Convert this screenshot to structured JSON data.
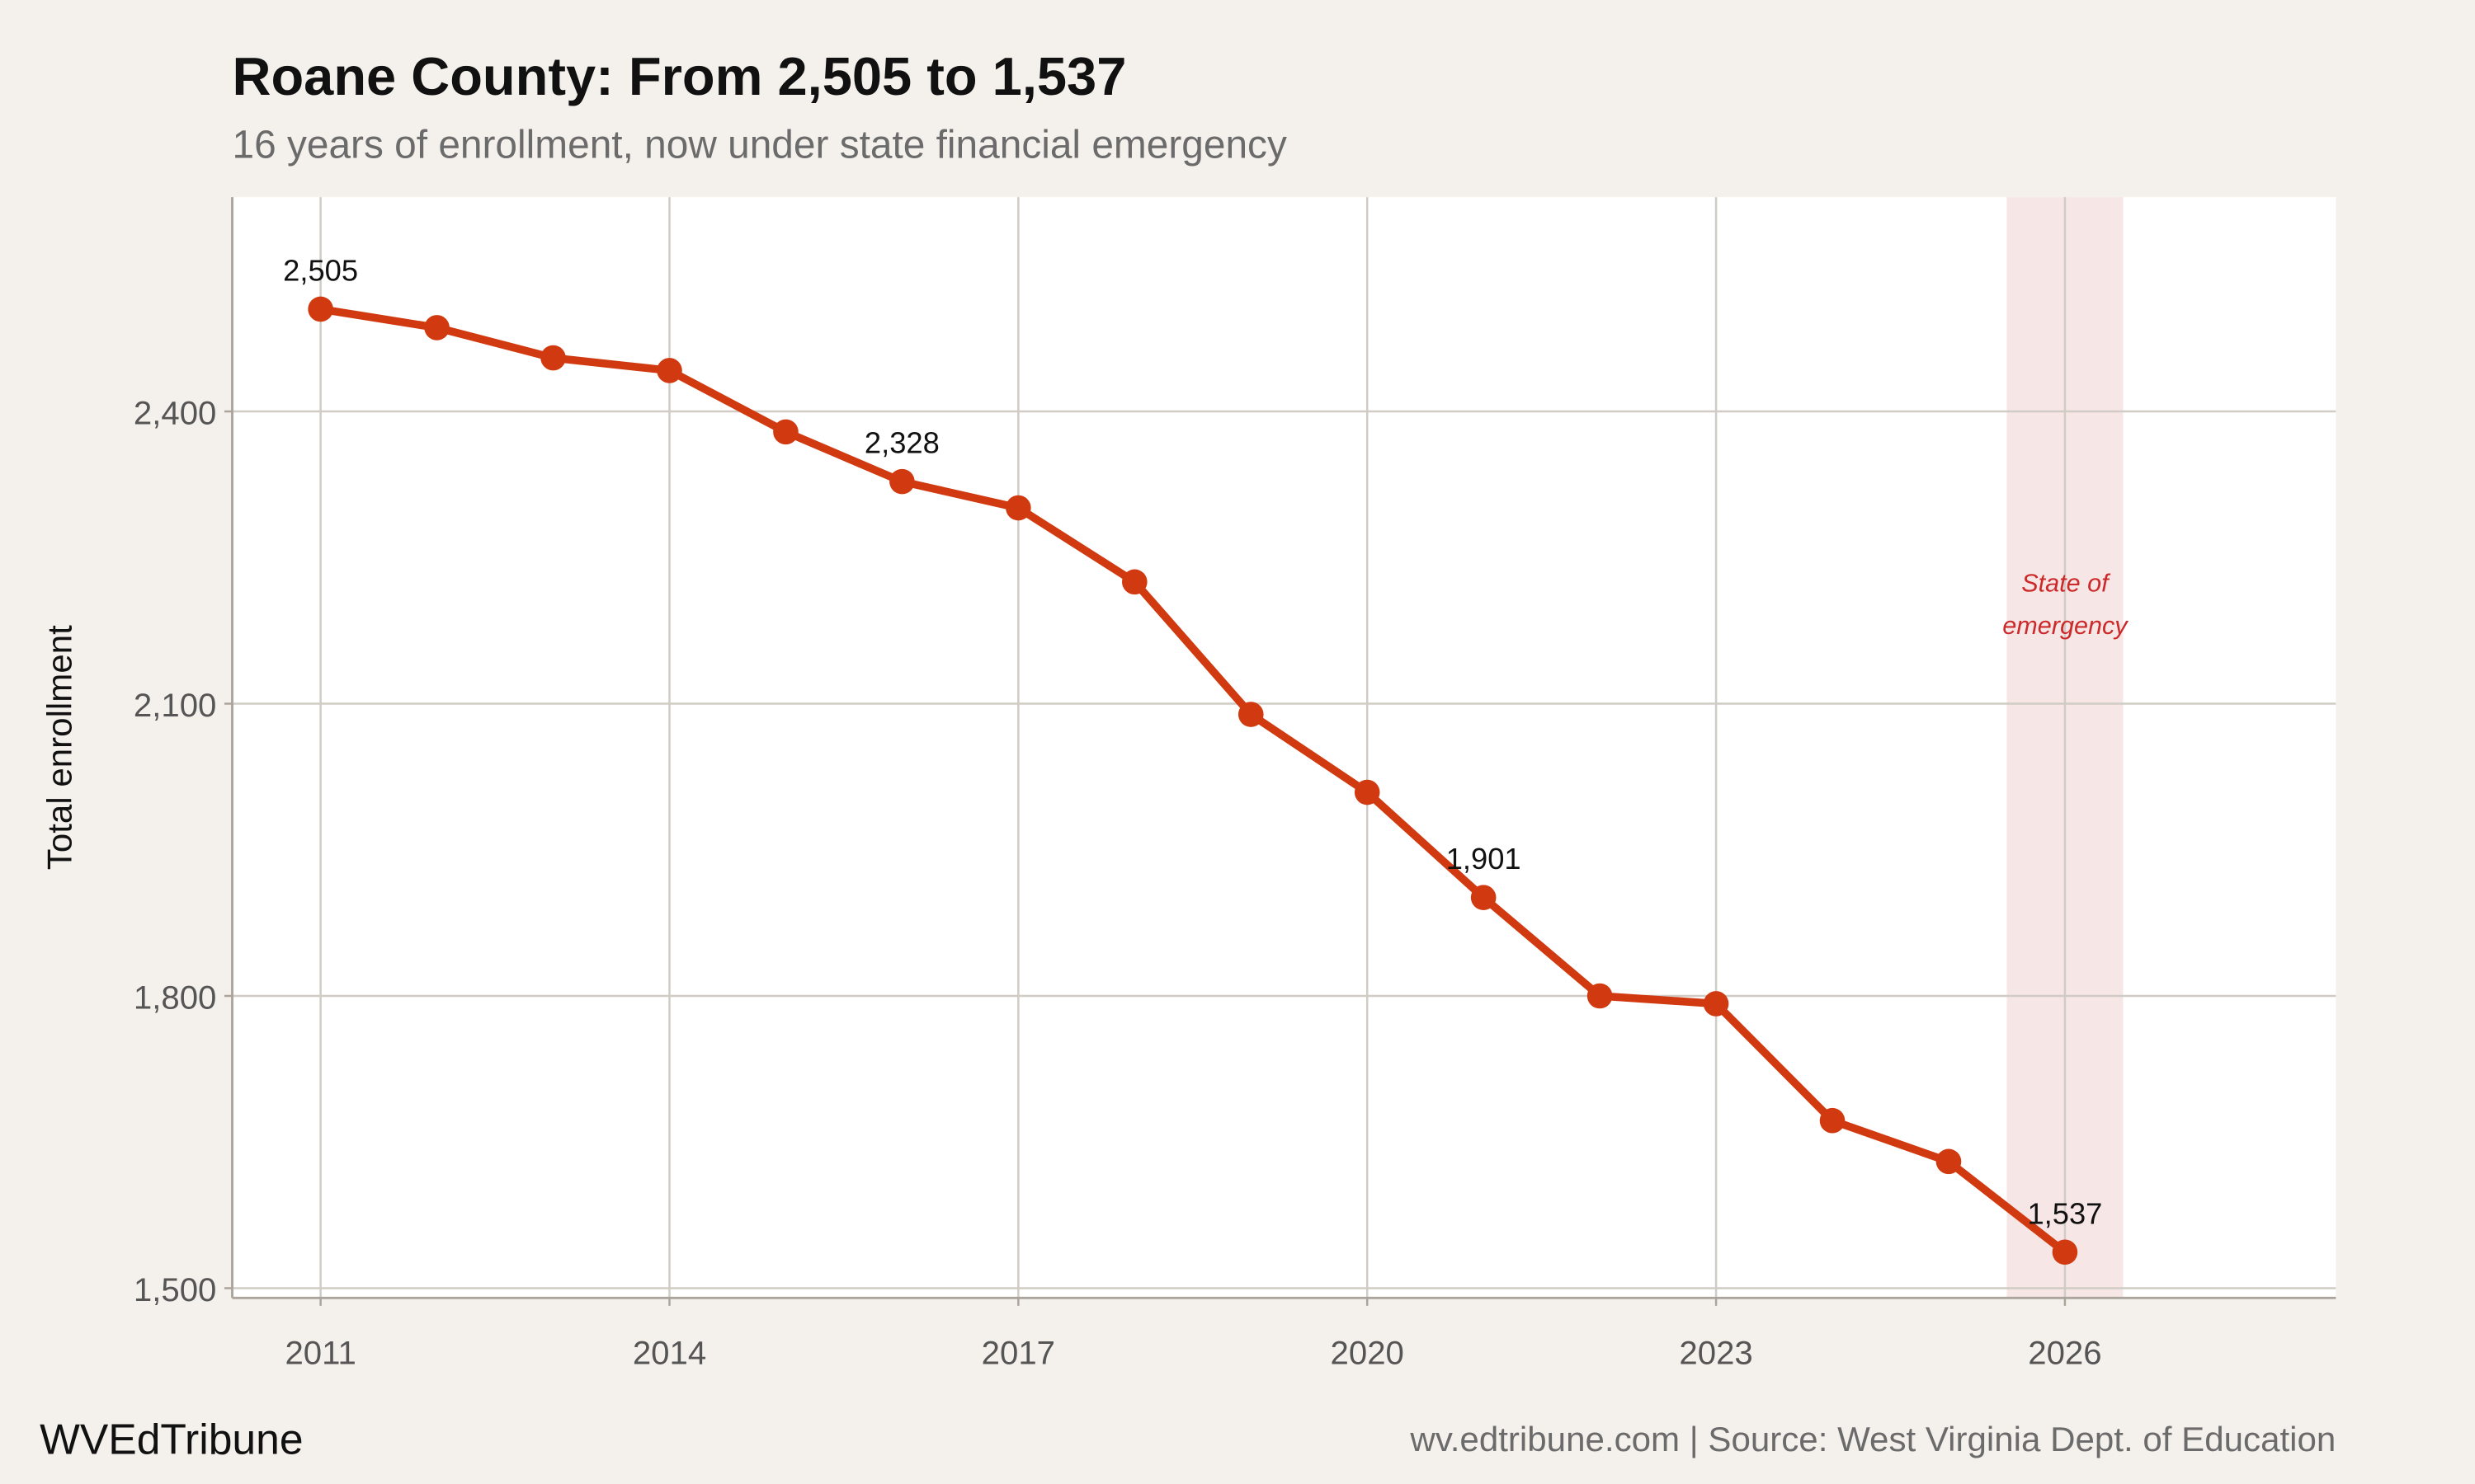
{
  "chart_data": {
    "type": "line",
    "title": "Roane County: From 2,505 to 1,537",
    "subtitle": "16 years of enrollment, now under state financial emergency",
    "xlabel": "",
    "ylabel": "Total enrollment",
    "x": [
      2011,
      2012,
      2013,
      2014,
      2015,
      2016,
      2017,
      2018,
      2019,
      2020,
      2021,
      2022,
      2023,
      2024,
      2025,
      2026
    ],
    "values": [
      2505,
      2486,
      2455,
      2442,
      2379,
      2328,
      2301,
      2225,
      2089,
      2009,
      1901,
      1800,
      1792,
      1672,
      1630,
      1537
    ],
    "data_labels": [
      {
        "x": 2011,
        "text": "2,505"
      },
      {
        "x": 2016,
        "text": "2,328"
      },
      {
        "x": 2021,
        "text": "1,901"
      },
      {
        "x": 2026,
        "text": "1,537"
      }
    ],
    "xlim": [
      2010.24,
      2028.33
    ],
    "ylim": [
      1490,
      2620
    ],
    "x_ticks": [
      2011,
      2014,
      2017,
      2020,
      2023,
      2026
    ],
    "x_tick_labels": [
      "2011",
      "2014",
      "2017",
      "2020",
      "2023",
      "2026"
    ],
    "y_ticks": [
      1500,
      1800,
      2100,
      2400
    ],
    "y_tick_labels": [
      "1,500",
      "1,800",
      "2,100",
      "2,400"
    ],
    "grid": true,
    "legend": "none",
    "highlight_band": {
      "x_range": [
        2025.5,
        2026.5
      ],
      "label_line1": "State of",
      "label_line2": "emergency",
      "color": "#f7e6e6",
      "text_color": "#cc2a2a"
    },
    "colors": {
      "line": "#d13a10",
      "background": "#f4f1ec",
      "panel": "#ffffff",
      "grid": "#d0cbc4"
    }
  },
  "footer": {
    "brand": "WVEdTribune",
    "source": "wv.edtribune.com | Source: West Virginia Dept. of Education"
  }
}
